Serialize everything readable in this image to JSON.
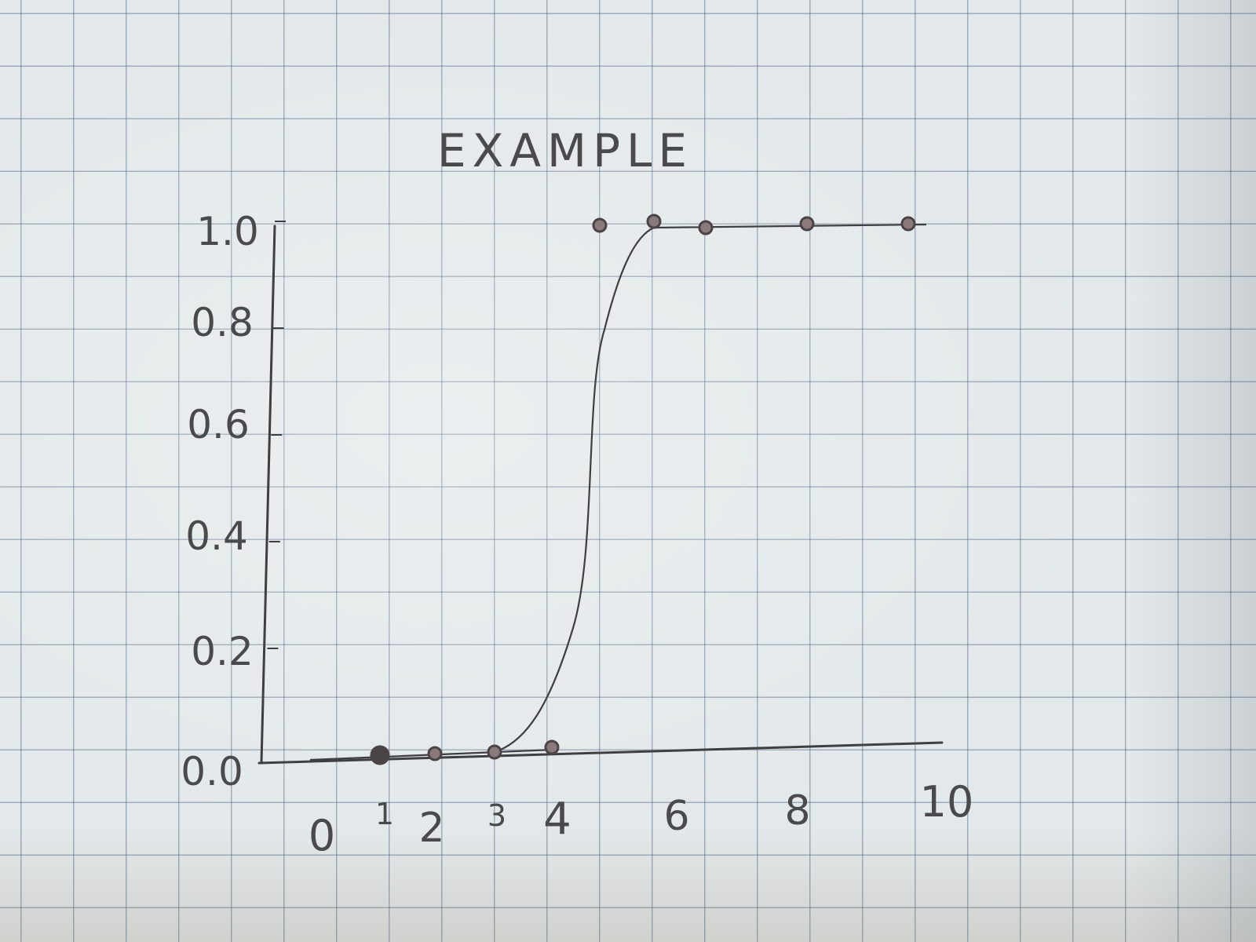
{
  "chart_data": {
    "type": "scatter",
    "title": "EXAMPLE",
    "xlabel": "",
    "ylabel": "",
    "x_ticks": [
      "0",
      "1",
      "2",
      "3",
      "4",
      "6",
      "8",
      "10"
    ],
    "x_tick_values": [
      0,
      1,
      2,
      3,
      4,
      6,
      8,
      10
    ],
    "y_ticks": [
      "0.0",
      "0.2",
      "0.4",
      "0.6",
      "0.8",
      "1.0"
    ],
    "y_tick_values": [
      0,
      0.2,
      0.4,
      0.6,
      0.8,
      1.0
    ],
    "xlim": [
      0,
      10.5
    ],
    "ylim": [
      0,
      1.0
    ],
    "grid": false,
    "series": [
      {
        "points": [
          {
            "x": 1,
            "y": 0.0
          },
          {
            "x": 2,
            "y": 0.0
          },
          {
            "x": 3,
            "y": 0.0
          },
          {
            "x": 4,
            "y": 0.02
          },
          {
            "x": 5,
            "y": 1.0
          },
          {
            "x": 6,
            "y": 1.0
          },
          {
            "x": 7,
            "y": 1.0
          },
          {
            "x": 9,
            "y": 1.0
          },
          {
            "x": 11,
            "y": 1.0
          }
        ]
      }
    ],
    "fit_curve": "sigmoid",
    "colors": {
      "ink": "#3f3f42",
      "point": "#4b4446",
      "point_fill": "#8a7a7c"
    }
  }
}
